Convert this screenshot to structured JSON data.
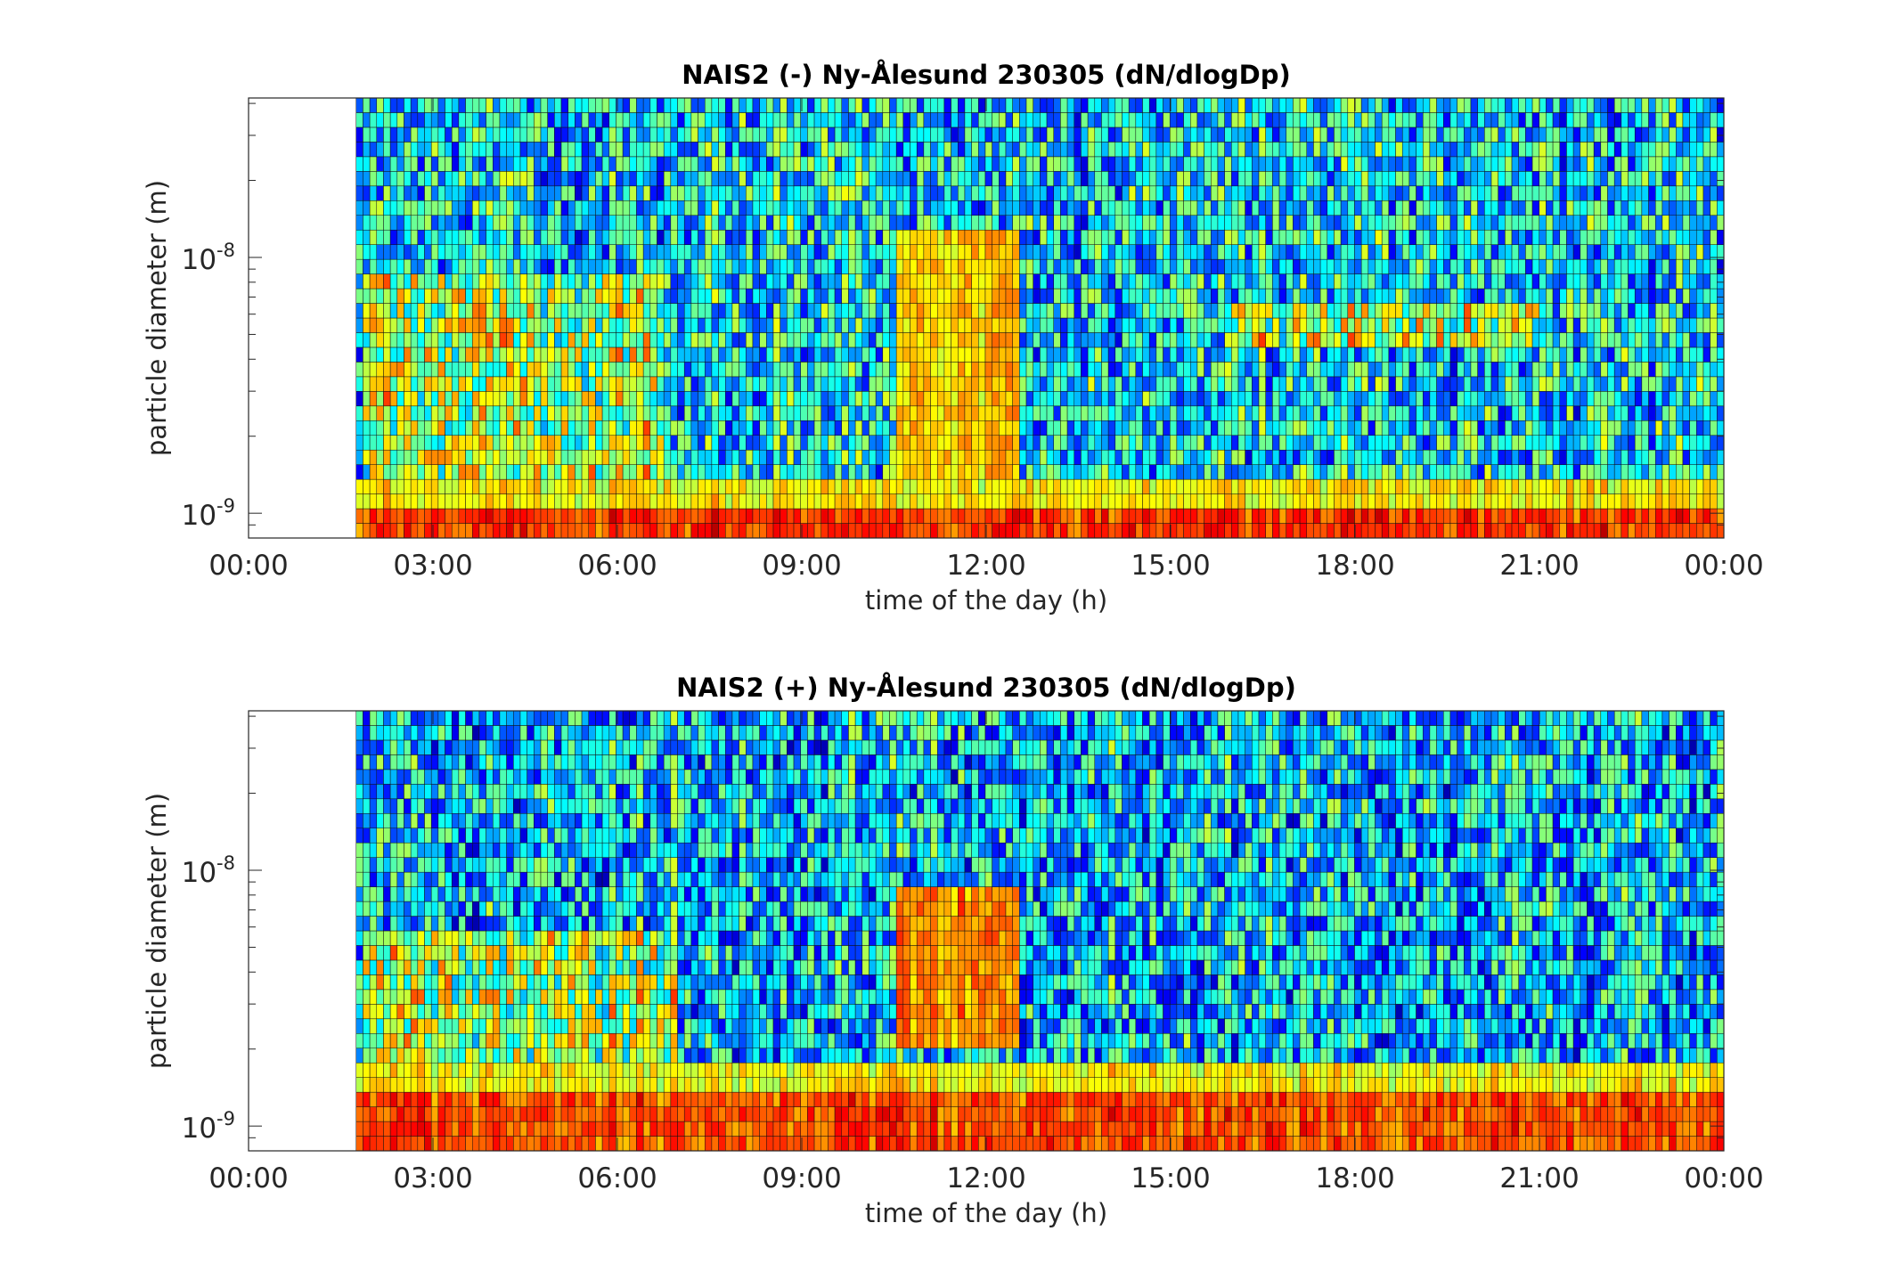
{
  "chart_data": [
    {
      "type": "heatmap",
      "title": "NAIS2 (-) Ny-Ålesund 230305 (dN/dlogDp)",
      "xlabel": "time of the day (h)",
      "ylabel": "particle diameter (m)",
      "x_tick_labels": [
        "00:00",
        "03:00",
        "06:00",
        "09:00",
        "12:00",
        "15:00",
        "18:00",
        "21:00",
        "00:00"
      ],
      "xlim_hours": [
        0,
        24
      ],
      "data_start_hour": 1.75,
      "y_scale": "log",
      "y_tick_labels": [
        {
          "base": "10",
          "exp": "-9",
          "value": 1e-09
        },
        {
          "base": "10",
          "exp": "-8",
          "value": 1e-08
        }
      ],
      "ylim": [
        8e-10,
        4.2e-08
      ],
      "colormap": "jet",
      "grid": false,
      "bands": [
        {
          "dp_min": 8e-10,
          "dp_max": 1.05e-09,
          "level": 0.82,
          "note": "high concentration"
        },
        {
          "dp_min": 1.05e-09,
          "dp_max": 1.4e-09,
          "level": 0.63
        },
        {
          "dp_min": 1.4e-09,
          "dp_max": 4.2e-08,
          "level": 0.35
        }
      ],
      "events": [
        {
          "t_start": 10.5,
          "t_end": 12.5,
          "dp_min": 1.4e-09,
          "dp_max": 1.2e-08,
          "level": 0.68
        },
        {
          "t_start": 1.9,
          "t_end": 6.8,
          "dp_min": 1.4e-09,
          "dp_max": 8.5e-09,
          "level": 0.55
        },
        {
          "t_start": 16.0,
          "t_end": 21.0,
          "dp_min": 4.5e-09,
          "dp_max": 6.5e-09,
          "level": 0.55
        }
      ]
    },
    {
      "type": "heatmap",
      "title": "NAIS2 (+) Ny-Ålesund 230305 (dN/dlogDp)",
      "xlabel": "time of the day (h)",
      "ylabel": "particle diameter (m)",
      "x_tick_labels": [
        "00:00",
        "03:00",
        "06:00",
        "09:00",
        "12:00",
        "15:00",
        "18:00",
        "21:00",
        "00:00"
      ],
      "xlim_hours": [
        0,
        24
      ],
      "data_start_hour": 1.75,
      "y_scale": "log",
      "y_tick_labels": [
        {
          "base": "10",
          "exp": "-9",
          "value": 1e-09
        },
        {
          "base": "10",
          "exp": "-8",
          "value": 1e-08
        }
      ],
      "ylim": [
        8e-10,
        4.2e-08
      ],
      "colormap": "jet",
      "grid": false,
      "bands": [
        {
          "dp_min": 8e-10,
          "dp_max": 1.3e-09,
          "level": 0.8,
          "note": "high concentration"
        },
        {
          "dp_min": 1.3e-09,
          "dp_max": 1.7e-09,
          "level": 0.63
        },
        {
          "dp_min": 1.7e-09,
          "dp_max": 4.2e-08,
          "level": 0.32
        }
      ],
      "events": [
        {
          "t_start": 10.5,
          "t_end": 12.5,
          "dp_min": 2e-09,
          "dp_max": 9e-09,
          "level": 0.74
        },
        {
          "t_start": 1.9,
          "t_end": 7.0,
          "dp_min": 1.7e-09,
          "dp_max": 6e-09,
          "level": 0.55
        }
      ]
    }
  ]
}
